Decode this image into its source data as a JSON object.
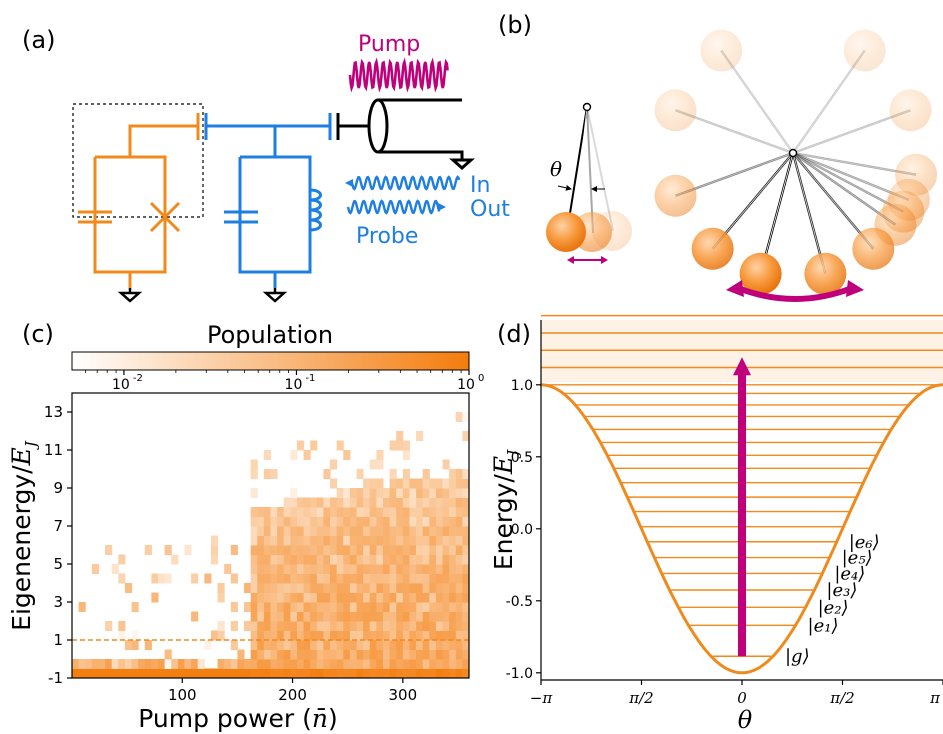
{
  "panel_labels": {
    "a": "(a)",
    "b": "(b)",
    "c": "(c)",
    "d": "(d)"
  },
  "circuit": {
    "pump_label": "Pump",
    "in_label": "In",
    "out_label": "Out",
    "probe_label": "Probe",
    "colors": {
      "pump": "#c0007a",
      "probe": "#1e7fe0",
      "qubit": "#f08a1c",
      "line": "#000000"
    }
  },
  "pendulum": {
    "theta_label": "θ"
  },
  "chart_c": {
    "colorbar_title": "Population",
    "colorbar_ticks": [
      "10",
      "10",
      "10"
    ],
    "colorbar_exps": [
      "-2",
      "-1",
      "0"
    ],
    "xlabel": "Pump power (",
    "xlabel_symbol": "n̄",
    "xlabel_close": ")",
    "ylabel_main": "Eigenenergy/",
    "ylabel_sym": "E",
    "ylabel_sub": "J"
  },
  "chart_d": {
    "ylabel_main": "Energy/",
    "ylabel_sym": "E",
    "ylabel_sub": "J",
    "xlabel": "θ",
    "state_labels": [
      "|g⟩",
      "|e₁⟩",
      "|e₂⟩",
      "|e₃⟩",
      "|e₄⟩",
      "|e₅⟩",
      "|e₆⟩"
    ]
  },
  "chart_data": [
    {
      "type": "heatmap",
      "title": "Population",
      "xlabel": "Pump power (n̄)",
      "ylabel": "Eigenenergy/E_J",
      "xlim": [
        0,
        360
      ],
      "ylim": [
        -1,
        14
      ],
      "xticks": [
        100,
        200,
        300
      ],
      "yticks": [
        -1,
        1,
        3,
        5,
        7,
        9,
        11,
        13
      ],
      "colorbar": {
        "scale": "log",
        "range": [
          0.005,
          1
        ],
        "ticks": [
          0.01,
          0.1,
          1
        ],
        "low_color": "#ffffff",
        "high_color": "#f47c0c"
      },
      "reference_line_y": 1,
      "description_of_distribution": "population concentrated near -1 at low pump power, spreading up to ~9 above pump power ~160"
    },
    {
      "type": "line",
      "xlabel": "θ",
      "ylabel": "Energy/E_J",
      "xtick_labels": [
        "−π",
        "π/2",
        "0",
        "π/2",
        "π"
      ],
      "ytick_labels": [
        "-1.0",
        "-0.5",
        "0.0",
        "0.5",
        "1.0"
      ],
      "ylim": [
        -1.05,
        1.2
      ],
      "potential": "-cos(theta)",
      "levels": [
        -0.885,
        -0.67,
        -0.545,
        -0.425,
        -0.31,
        -0.2,
        -0.09,
        0.015,
        0.12,
        0.22,
        0.32,
        0.42,
        0.51,
        0.6,
        0.69,
        0.78,
        0.86,
        0.94,
        1.0
      ],
      "unbound_levels": [
        1.12,
        1.24,
        1.36,
        1.48
      ],
      "arrow": {
        "from": -0.885,
        "to": 1.15,
        "x": 0
      },
      "state_labels": [
        "|g⟩",
        "|e₁⟩",
        "|e₂⟩",
        "|e₃⟩",
        "|e₄⟩",
        "|e₅⟩",
        "|e₆⟩"
      ]
    }
  ]
}
